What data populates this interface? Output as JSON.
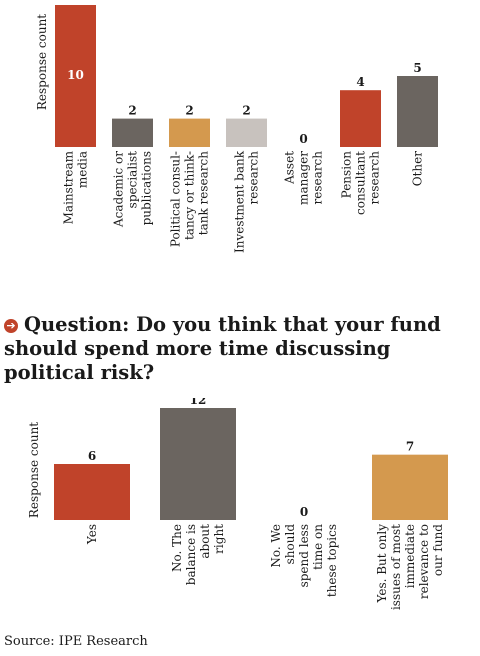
{
  "question": {
    "icon": "arrow-right-circle-icon",
    "text": "Question: Do you think that your fund should spend more time discussing political risk?"
  },
  "source": "Source: IPE Research",
  "chart_data": [
    {
      "type": "bar",
      "ylabel": "Response count",
      "ylim": [
        0,
        10
      ],
      "categories": [
        [
          "Mainstream",
          "media"
        ],
        [
          "Academic or",
          "specialist",
          "publications"
        ],
        [
          "Political consul-",
          "tancy or think-",
          "tank research"
        ],
        [
          "Investment bank",
          "research"
        ],
        [
          "Asset",
          "manager",
          "research"
        ],
        [
          "Pension",
          "consultant",
          "research"
        ],
        [
          "Other"
        ]
      ],
      "values": [
        10,
        2,
        2,
        2,
        0,
        4,
        5
      ],
      "colors": [
        "#c0432a",
        "#6b6560",
        "#d4994e",
        "#c8c2be",
        "#c8c2be",
        "#c0432a",
        "#6b6560"
      ],
      "value_label_colors": [
        "#ffffff",
        "#1a1a1a",
        "#1a1a1a",
        "#1a1a1a",
        "#1a1a1a",
        "#1a1a1a",
        "#1a1a1a"
      ]
    },
    {
      "type": "bar",
      "ylabel": "Response count",
      "ylim": [
        0,
        12
      ],
      "categories": [
        [
          "Yes"
        ],
        [
          "No. The",
          "balance is",
          "about",
          "right"
        ],
        [
          "No. We",
          "should",
          "spend less",
          "time on",
          "these topics"
        ],
        [
          "Yes. But only",
          "issues of most",
          "immediate",
          "relevance to",
          "our fund"
        ]
      ],
      "values": [
        6,
        12,
        0,
        7
      ],
      "colors": [
        "#c0432a",
        "#6b6560",
        "#c8c2be",
        "#d4994e"
      ],
      "value_label_colors": [
        "#1a1a1a",
        "#1a1a1a",
        "#1a1a1a",
        "#1a1a1a"
      ]
    }
  ]
}
